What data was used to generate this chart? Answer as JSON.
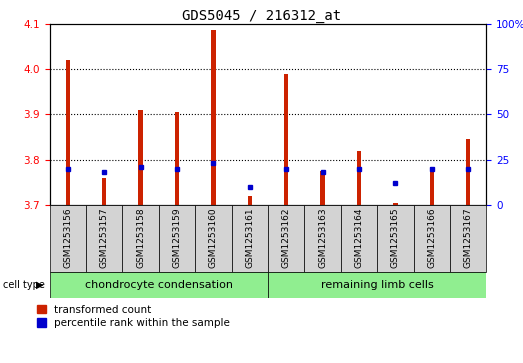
{
  "title": "GDS5045 / 216312_at",
  "samples": [
    "GSM1253156",
    "GSM1253157",
    "GSM1253158",
    "GSM1253159",
    "GSM1253160",
    "GSM1253161",
    "GSM1253162",
    "GSM1253163",
    "GSM1253164",
    "GSM1253165",
    "GSM1253166",
    "GSM1253167"
  ],
  "transformed_count": [
    4.02,
    3.76,
    3.91,
    3.905,
    4.085,
    3.72,
    3.99,
    3.775,
    3.82,
    3.705,
    3.785,
    3.845
  ],
  "percentile_rank": [
    20,
    18,
    21,
    20,
    23,
    10,
    20,
    18,
    20,
    12,
    20,
    20
  ],
  "bar_color": "#cc2200",
  "blue_color": "#0000cc",
  "ylim_left": [
    3.7,
    4.1
  ],
  "ylim_right": [
    0,
    100
  ],
  "yticks_left": [
    3.7,
    3.8,
    3.9,
    4.0,
    4.1
  ],
  "yticks_right": [
    0,
    25,
    50,
    75,
    100
  ],
  "grid_color": "#000000",
  "sample_bg": "#d3d3d3",
  "plot_bg": "#ffffff",
  "green_light": "#90ee90",
  "title_fontsize": 10,
  "tick_fontsize": 7.5,
  "sample_fontsize": 6.5,
  "cell_fontsize": 8,
  "legend_fontsize": 7.5,
  "bar_width": 0.12,
  "chondrocyte_count": 6,
  "remaining_count": 6
}
